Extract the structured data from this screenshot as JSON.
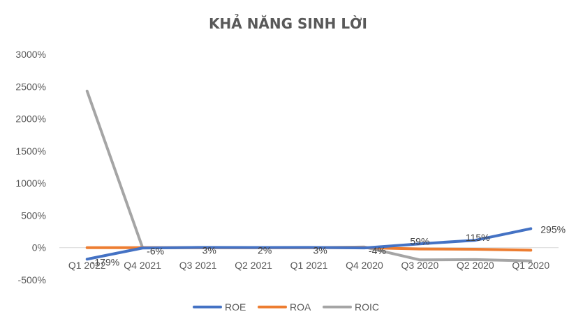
{
  "chart_data": {
    "type": "line",
    "title": "KHẢ NĂNG SINH LỜI",
    "xlabel": "",
    "ylabel": "",
    "categories": [
      "Q1 2022",
      "Q4 2021",
      "Q3 2021",
      "Q2 2021",
      "Q1 2021",
      "Q4 2020",
      "Q3 2020",
      "Q2 2020",
      "Q1 2020"
    ],
    "ylim": [
      -500,
      3000
    ],
    "yticks": [
      3000,
      2500,
      2000,
      1500,
      1000,
      500,
      0,
      -500
    ],
    "ytick_labels": [
      "3000%",
      "2500%",
      "2000%",
      "1500%",
      "1000%",
      "500%",
      "0%",
      "-500%"
    ],
    "grid": false,
    "legend_position": "bottom",
    "series": [
      {
        "name": "ROE",
        "color": "#4472C4",
        "values": [
          -179,
          -6,
          3,
          2,
          3,
          -4,
          59,
          115,
          295
        ],
        "data_labels": [
          "-179%",
          "-6%",
          "3%",
          "2%",
          "3%",
          "-4%",
          "59%",
          "115%",
          "295%"
        ]
      },
      {
        "name": "ROA",
        "color": "#ED7D31",
        "values": [
          0,
          0,
          0,
          0,
          0,
          0,
          -20,
          -25,
          -40
        ]
      },
      {
        "name": "ROIC",
        "color": "#A5A5A5",
        "values": [
          2430,
          0,
          0,
          0,
          0,
          10,
          -190,
          -185,
          -205
        ]
      }
    ]
  }
}
